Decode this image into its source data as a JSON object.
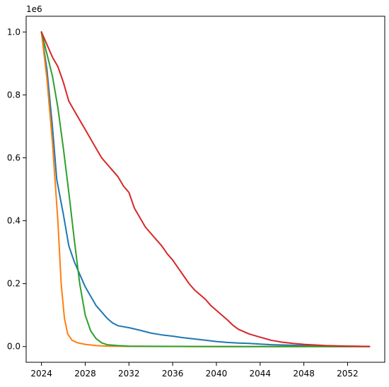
{
  "chart_data": {
    "type": "line",
    "offset_label": "1e6",
    "xlim": [
      2022.6,
      2055.4
    ],
    "ylim": [
      -50000,
      1050000
    ],
    "x_ticks": [
      2024,
      2028,
      2032,
      2036,
      2040,
      2044,
      2048,
      2052
    ],
    "x_tick_labels": [
      "2024",
      "2028",
      "2032",
      "2036",
      "2040",
      "2044",
      "2048",
      "2052"
    ],
    "y_ticks": [
      0,
      200000,
      400000,
      600000,
      800000,
      1000000
    ],
    "y_tick_labels": [
      "0.0",
      "0.2",
      "0.4",
      "0.6",
      "0.8",
      "1.0"
    ],
    "grid": false,
    "series": [
      {
        "color": "#1f77b4",
        "points": [
          [
            2024,
            1000000
          ],
          [
            2024.5,
            880000
          ],
          [
            2025,
            700000
          ],
          [
            2025.4,
            530000
          ],
          [
            2026,
            420000
          ],
          [
            2026.5,
            320000
          ],
          [
            2027,
            270000
          ],
          [
            2027.5,
            230000
          ],
          [
            2028,
            190000
          ],
          [
            2028.5,
            160000
          ],
          [
            2029,
            130000
          ],
          [
            2029.5,
            110000
          ],
          [
            2030,
            90000
          ],
          [
            2030.5,
            75000
          ],
          [
            2031,
            66000
          ],
          [
            2032,
            60000
          ],
          [
            2033,
            52000
          ],
          [
            2034,
            43000
          ],
          [
            2035,
            37000
          ],
          [
            2036,
            33000
          ],
          [
            2037,
            28000
          ],
          [
            2038,
            24000
          ],
          [
            2039,
            20000
          ],
          [
            2040,
            16000
          ],
          [
            2041,
            13000
          ],
          [
            2042,
            11000
          ],
          [
            2043,
            10000
          ],
          [
            2044,
            8000
          ],
          [
            2045,
            6000
          ],
          [
            2046,
            5000
          ],
          [
            2047,
            4000
          ],
          [
            2048,
            3000
          ],
          [
            2049,
            2000
          ],
          [
            2050,
            1500
          ],
          [
            2051,
            1000
          ],
          [
            2052,
            700
          ],
          [
            2053,
            400
          ],
          [
            2054,
            200
          ]
        ]
      },
      {
        "color": "#ff7f0e",
        "points": [
          [
            2024,
            1000000
          ],
          [
            2024.5,
            850000
          ],
          [
            2025,
            650000
          ],
          [
            2025.5,
            400000
          ],
          [
            2025.8,
            200000
          ],
          [
            2026.1,
            90000
          ],
          [
            2026.4,
            40000
          ],
          [
            2026.8,
            20000
          ],
          [
            2027.3,
            12000
          ],
          [
            2028,
            7000
          ],
          [
            2029,
            3000
          ],
          [
            2030,
            1500
          ],
          [
            2032,
            500
          ],
          [
            2036,
            200
          ],
          [
            2040,
            100
          ],
          [
            2044,
            50
          ],
          [
            2048,
            20
          ],
          [
            2054,
            0
          ]
        ]
      },
      {
        "color": "#2ca02c",
        "points": [
          [
            2024,
            1000000
          ],
          [
            2024.5,
            930000
          ],
          [
            2025,
            860000
          ],
          [
            2025.5,
            760000
          ],
          [
            2026,
            630000
          ],
          [
            2026.5,
            490000
          ],
          [
            2027,
            340000
          ],
          [
            2027.5,
            200000
          ],
          [
            2028,
            100000
          ],
          [
            2028.5,
            50000
          ],
          [
            2029,
            25000
          ],
          [
            2029.5,
            12000
          ],
          [
            2030,
            6000
          ],
          [
            2031,
            3000
          ],
          [
            2032,
            1500
          ],
          [
            2034,
            700
          ],
          [
            2038,
            300
          ],
          [
            2042,
            150
          ],
          [
            2046,
            80
          ],
          [
            2050,
            40
          ],
          [
            2054,
            10
          ]
        ]
      },
      {
        "color": "#d62728",
        "points": [
          [
            2024,
            1000000
          ],
          [
            2024.5,
            960000
          ],
          [
            2025,
            920000
          ],
          [
            2025.5,
            890000
          ],
          [
            2026,
            840000
          ],
          [
            2026.5,
            780000
          ],
          [
            2027,
            750000
          ],
          [
            2027.5,
            720000
          ],
          [
            2028,
            690000
          ],
          [
            2028.5,
            660000
          ],
          [
            2029,
            630000
          ],
          [
            2029.5,
            600000
          ],
          [
            2030,
            580000
          ],
          [
            2030.5,
            560000
          ],
          [
            2031,
            540000
          ],
          [
            2031.5,
            510000
          ],
          [
            2032,
            490000
          ],
          [
            2032.5,
            440000
          ],
          [
            2033,
            410000
          ],
          [
            2033.5,
            380000
          ],
          [
            2034,
            360000
          ],
          [
            2034.5,
            340000
          ],
          [
            2035,
            320000
          ],
          [
            2035.5,
            295000
          ],
          [
            2036,
            275000
          ],
          [
            2036.5,
            250000
          ],
          [
            2037,
            225000
          ],
          [
            2037.5,
            200000
          ],
          [
            2038,
            180000
          ],
          [
            2038.5,
            165000
          ],
          [
            2039,
            150000
          ],
          [
            2039.5,
            130000
          ],
          [
            2040,
            115000
          ],
          [
            2040.5,
            100000
          ],
          [
            2041,
            85000
          ],
          [
            2041.5,
            68000
          ],
          [
            2042,
            55000
          ],
          [
            2043,
            40000
          ],
          [
            2044,
            30000
          ],
          [
            2045,
            20000
          ],
          [
            2046,
            14000
          ],
          [
            2047,
            10000
          ],
          [
            2048,
            7000
          ],
          [
            2049,
            5000
          ],
          [
            2050,
            3000
          ],
          [
            2051,
            2000
          ],
          [
            2052,
            1500
          ],
          [
            2053,
            1000
          ],
          [
            2054,
            600
          ]
        ]
      }
    ]
  }
}
